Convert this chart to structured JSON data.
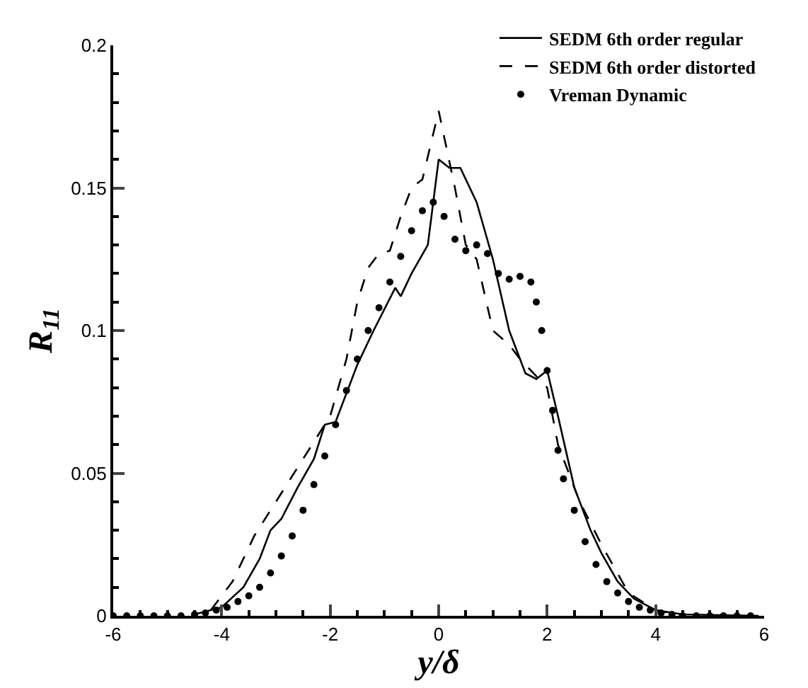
{
  "chart_data": {
    "type": "line",
    "xlabel": "y/δ",
    "ylabel": "R$_{11}$",
    "xlim": [
      -6,
      6
    ],
    "xticks": [
      -6,
      -4,
      -2,
      0,
      2,
      4,
      6
    ],
    "ylim": [
      0,
      0.2
    ],
    "yticks": [
      0,
      0.05,
      0.1,
      0.15,
      0.2
    ],
    "grid": false,
    "legend": "top right",
    "series": [
      {
        "name": "SEDM 6th order regular",
        "color": "#000000",
        "line_style": "solid",
        "marker": "none",
        "x": [
          -4.5,
          -4,
          -3.6,
          -3.3,
          -3.1,
          -2.9,
          -2.6,
          -2.3,
          -2.1,
          -1.9,
          -1.5,
          -1.2,
          -0.8,
          -0.7,
          -0.5,
          -0.2,
          0,
          0.2,
          0.4,
          0.7,
          1.0,
          1.3,
          1.6,
          1.8,
          2.0,
          2.2,
          2.5,
          2.8,
          3.0,
          3.3,
          3.6,
          4,
          4.5,
          5.9
        ],
        "values": [
          0.0005,
          0.003,
          0.01,
          0.02,
          0.03,
          0.034,
          0.045,
          0.055,
          0.067,
          0.068,
          0.088,
          0.1,
          0.115,
          0.112,
          0.12,
          0.13,
          0.16,
          0.157,
          0.157,
          0.145,
          0.125,
          0.1,
          0.085,
          0.083,
          0.086,
          0.07,
          0.045,
          0.03,
          0.022,
          0.012,
          0.006,
          0.002,
          0.0005,
          0
        ]
      },
      {
        "name": "SEDM 6th order distorted",
        "color": "#000000",
        "line_style": "dashed",
        "marker": "none",
        "x": [
          -4.2,
          -3.8,
          -3.4,
          -3,
          -2.5,
          -2,
          -1.7,
          -1.5,
          -1.3,
          -1.1,
          -0.9,
          -0.7,
          -0.5,
          -0.3,
          0,
          0.3,
          0.5,
          0.7,
          1.0,
          1.3,
          1.5,
          2.0,
          2.2,
          2.6,
          3,
          3.5,
          4,
          4.5
        ],
        "values": [
          0.002,
          0.012,
          0.028,
          0.04,
          0.055,
          0.07,
          0.09,
          0.11,
          0.122,
          0.127,
          0.128,
          0.14,
          0.15,
          0.153,
          0.177,
          0.15,
          0.13,
          0.125,
          0.1,
          0.095,
          0.09,
          0.08,
          0.06,
          0.04,
          0.025,
          0.008,
          0.002,
          0
        ]
      },
      {
        "name": "Vreman Dynamic",
        "type": "scatter",
        "color": "#000000",
        "marker": "circle",
        "x": [
          -6,
          -5.75,
          -5.5,
          -5.25,
          -5,
          -4.75,
          -4.5,
          -4.3,
          -4.1,
          -3.9,
          -3.7,
          -3.5,
          -3.3,
          -3.1,
          -2.9,
          -2.7,
          -2.5,
          -2.3,
          -2.1,
          -1.9,
          -1.7,
          -1.5,
          -1.3,
          -1.1,
          -0.9,
          -0.7,
          -0.5,
          -0.3,
          -0.1,
          0.1,
          0.3,
          0.5,
          0.7,
          0.9,
          1.1,
          1.3,
          1.5,
          1.7,
          1.8,
          1.9,
          2.0,
          2.1,
          2.2,
          2.3,
          2.5,
          2.7,
          2.9,
          3.1,
          3.3,
          3.5,
          3.7,
          3.9,
          4.1,
          4.3,
          4.5,
          4.75,
          5,
          5.25,
          5.5,
          5.75
        ],
        "values": [
          0,
          0,
          0,
          0,
          0,
          0,
          0.0005,
          0.001,
          0.002,
          0.003,
          0.005,
          0.007,
          0.01,
          0.015,
          0.021,
          0.028,
          0.037,
          0.046,
          0.056,
          0.067,
          0.079,
          0.09,
          0.1,
          0.108,
          0.117,
          0.126,
          0.135,
          0.142,
          0.145,
          0.14,
          0.132,
          0.128,
          0.13,
          0.127,
          0.12,
          0.118,
          0.119,
          0.117,
          0.11,
          0.1,
          0.086,
          0.072,
          0.058,
          0.048,
          0.037,
          0.026,
          0.018,
          0.012,
          0.008,
          0.005,
          0.003,
          0.002,
          0.001,
          0.0005,
          0,
          0,
          0,
          0,
          0,
          0
        ]
      }
    ]
  }
}
